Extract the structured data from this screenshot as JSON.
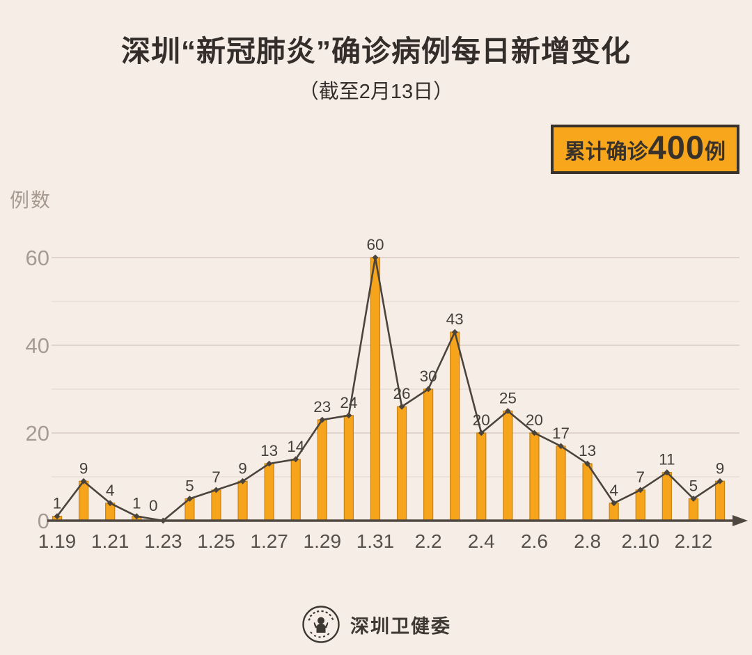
{
  "page": {
    "background": "#f6ede7"
  },
  "header": {
    "title": "深圳“新冠肺炎”确诊病例每日新增变化",
    "subtitle": "（截至2月13日）"
  },
  "badge": {
    "prefix": "累计确诊",
    "number": "400",
    "suffix": "例",
    "background": "#f8a71c",
    "border_color": "#38322b",
    "text_color": "#38322b"
  },
  "chart_data": {
    "type": "bar",
    "overlay": "line",
    "title": "深圳“新冠肺炎”确诊病例每日新增变化",
    "subtitle": "（截至2月13日）",
    "ylabel": "例数",
    "xlabel": "",
    "ylim": [
      0,
      60
    ],
    "yticks": [
      0,
      20,
      40,
      60
    ],
    "minor_gridlines": [
      10,
      30,
      50
    ],
    "grid": true,
    "legend": "none",
    "categories": [
      "1.19",
      "1.20",
      "1.21",
      "1.22",
      "1.23",
      "1.24",
      "1.25",
      "1.26",
      "1.27",
      "1.28",
      "1.29",
      "1.30",
      "1.31",
      "2.1",
      "2.2",
      "2.3",
      "2.4",
      "2.5",
      "2.6",
      "2.7",
      "2.8",
      "2.9",
      "2.10",
      "2.11",
      "2.12",
      "2.13"
    ],
    "values": [
      1,
      9,
      4,
      1,
      0,
      5,
      7,
      9,
      13,
      14,
      23,
      24,
      60,
      26,
      30,
      43,
      20,
      25,
      20,
      17,
      13,
      4,
      7,
      11,
      5,
      9
    ],
    "x_tick_labels": [
      "1.19",
      "1.21",
      "1.23",
      "1.25",
      "1.27",
      "1.29",
      "1.31",
      "2.2",
      "2.4",
      "2.6",
      "2.8",
      "2.10",
      "2.12"
    ],
    "total": 400,
    "colors": {
      "bar": "#f7a41d",
      "bar_border": "#c9820e",
      "line": "#4b443d",
      "marker": "#4b443d",
      "axis": "#4f4841",
      "grid_major": "#ddd1c9",
      "grid_minor": "#e9ded7",
      "y_tick_label": "#a79b91",
      "x_tick_label": "#57504a",
      "value_label": "#453f39"
    }
  },
  "footer": {
    "logo": "shenzhen-health-commission-seal-icon",
    "text": "深圳卫健委"
  }
}
